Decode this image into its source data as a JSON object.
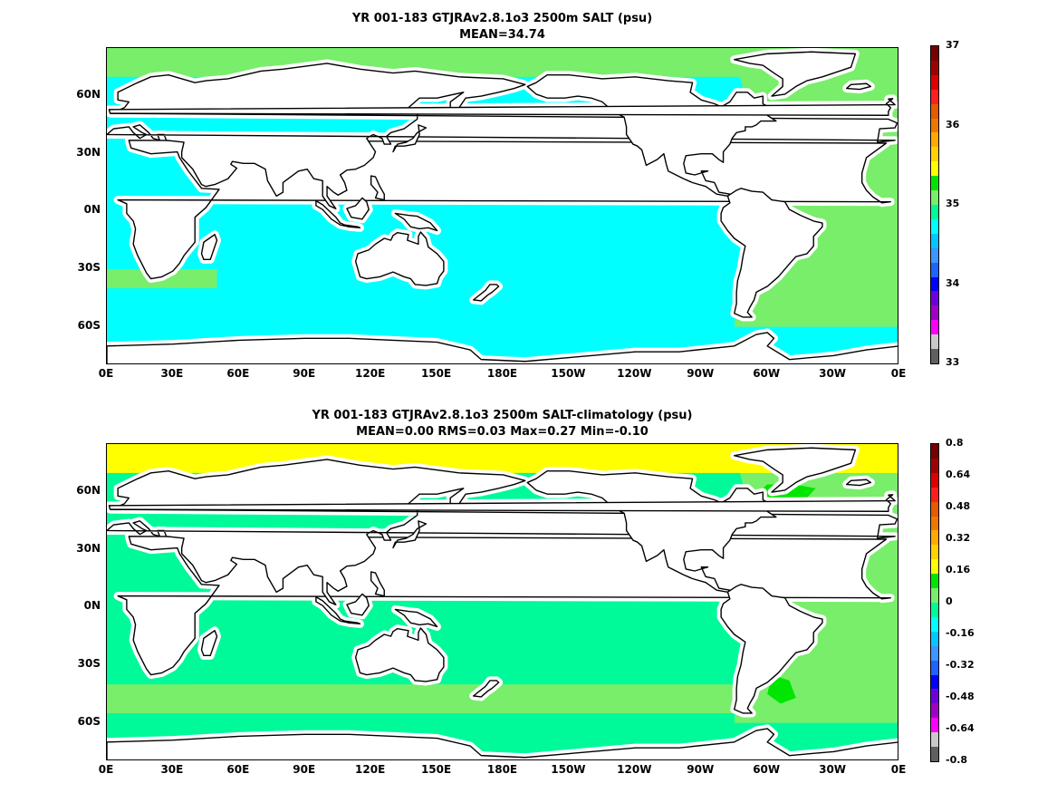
{
  "chart_data": [
    {
      "type": "heatmap",
      "title": "YR 001-183 GTJRAv2.8.1o3 2500m SALT (psu)",
      "subtitle": "MEAN=34.74",
      "xticks": [
        "0E",
        "30E",
        "60E",
        "90E",
        "120E",
        "150E",
        "180E",
        "150W",
        "120W",
        "90W",
        "60W",
        "30W",
        "0E"
      ],
      "yticks": [
        "60N",
        "30N",
        "0N",
        "30S",
        "60S"
      ],
      "xlim": [
        0,
        360
      ],
      "ylim": [
        -80,
        85
      ],
      "colorbar": {
        "range": [
          33,
          37
        ],
        "labels": [
          "37",
          "36",
          "35",
          "34",
          "33"
        ],
        "colors": [
          "#606060",
          "#c8c8c8",
          "#ff00ff",
          "#a000c8",
          "#6e00dc",
          "#0000ff",
          "#1e64ff",
          "#3c96ff",
          "#00c8ff",
          "#00ffff",
          "#00fa9a",
          "#78ee6a",
          "#00e600",
          "#ffff00",
          "#ffd200",
          "#ffaa00",
          "#f07800",
          "#e65a00",
          "#ff1e1e",
          "#dc0000",
          "#a00000",
          "#780000"
        ]
      },
      "regions": [
        {
          "name": "Pacific / Indian / Southern",
          "color": "#00ffff",
          "value": "≈34.7"
        },
        {
          "name": "North Atlantic",
          "color": "#78ee6a",
          "value": "≈34.9-35.0"
        },
        {
          "name": "Arctic",
          "color": "#78ee6a",
          "value": "≈34.9"
        }
      ]
    },
    {
      "type": "heatmap",
      "title": "YR 001-183 GTJRAv2.8.1o3 2500m SALT-climatology (psu)",
      "subtitle": "MEAN=0.00   RMS=0.03   Max=0.27   Min=-0.10",
      "xticks": [
        "0E",
        "30E",
        "60E",
        "90E",
        "120E",
        "150E",
        "180E",
        "150W",
        "120W",
        "90W",
        "60W",
        "30W",
        "0E"
      ],
      "yticks": [
        "60N",
        "30N",
        "0N",
        "30S",
        "60S"
      ],
      "xlim": [
        0,
        360
      ],
      "ylim": [
        -80,
        85
      ],
      "colorbar": {
        "range": [
          -0.8,
          0.8
        ],
        "labels": [
          "0.8",
          "0.64",
          "0.48",
          "0.32",
          "0.16",
          "0",
          "-0.16",
          "-0.32",
          "-0.48",
          "-0.64",
          "-0.8"
        ],
        "colors": [
          "#606060",
          "#c8c8c8",
          "#ff00ff",
          "#a000c8",
          "#6e00dc",
          "#0000ff",
          "#1e64ff",
          "#3c96ff",
          "#00c8ff",
          "#00ffff",
          "#00fa9a",
          "#78ee6a",
          "#00e600",
          "#ffff00",
          "#ffd200",
          "#ffaa00",
          "#f07800",
          "#e65a00",
          "#ff1e1e",
          "#dc0000",
          "#a00000",
          "#780000"
        ]
      },
      "regions": [
        {
          "name": "Pacific",
          "color": "#00fa9a",
          "value": "≈0 to 0.04"
        },
        {
          "name": "Atlantic",
          "color": "#78ee6a",
          "value": "≈0.04 to 0.08"
        },
        {
          "name": "Arctic",
          "color": "#ffff00",
          "value": "≈0.16 to 0.24"
        },
        {
          "name": "Labrador / Argentine basin",
          "color": "#00e600",
          "value": "≈0.16"
        }
      ]
    }
  ]
}
